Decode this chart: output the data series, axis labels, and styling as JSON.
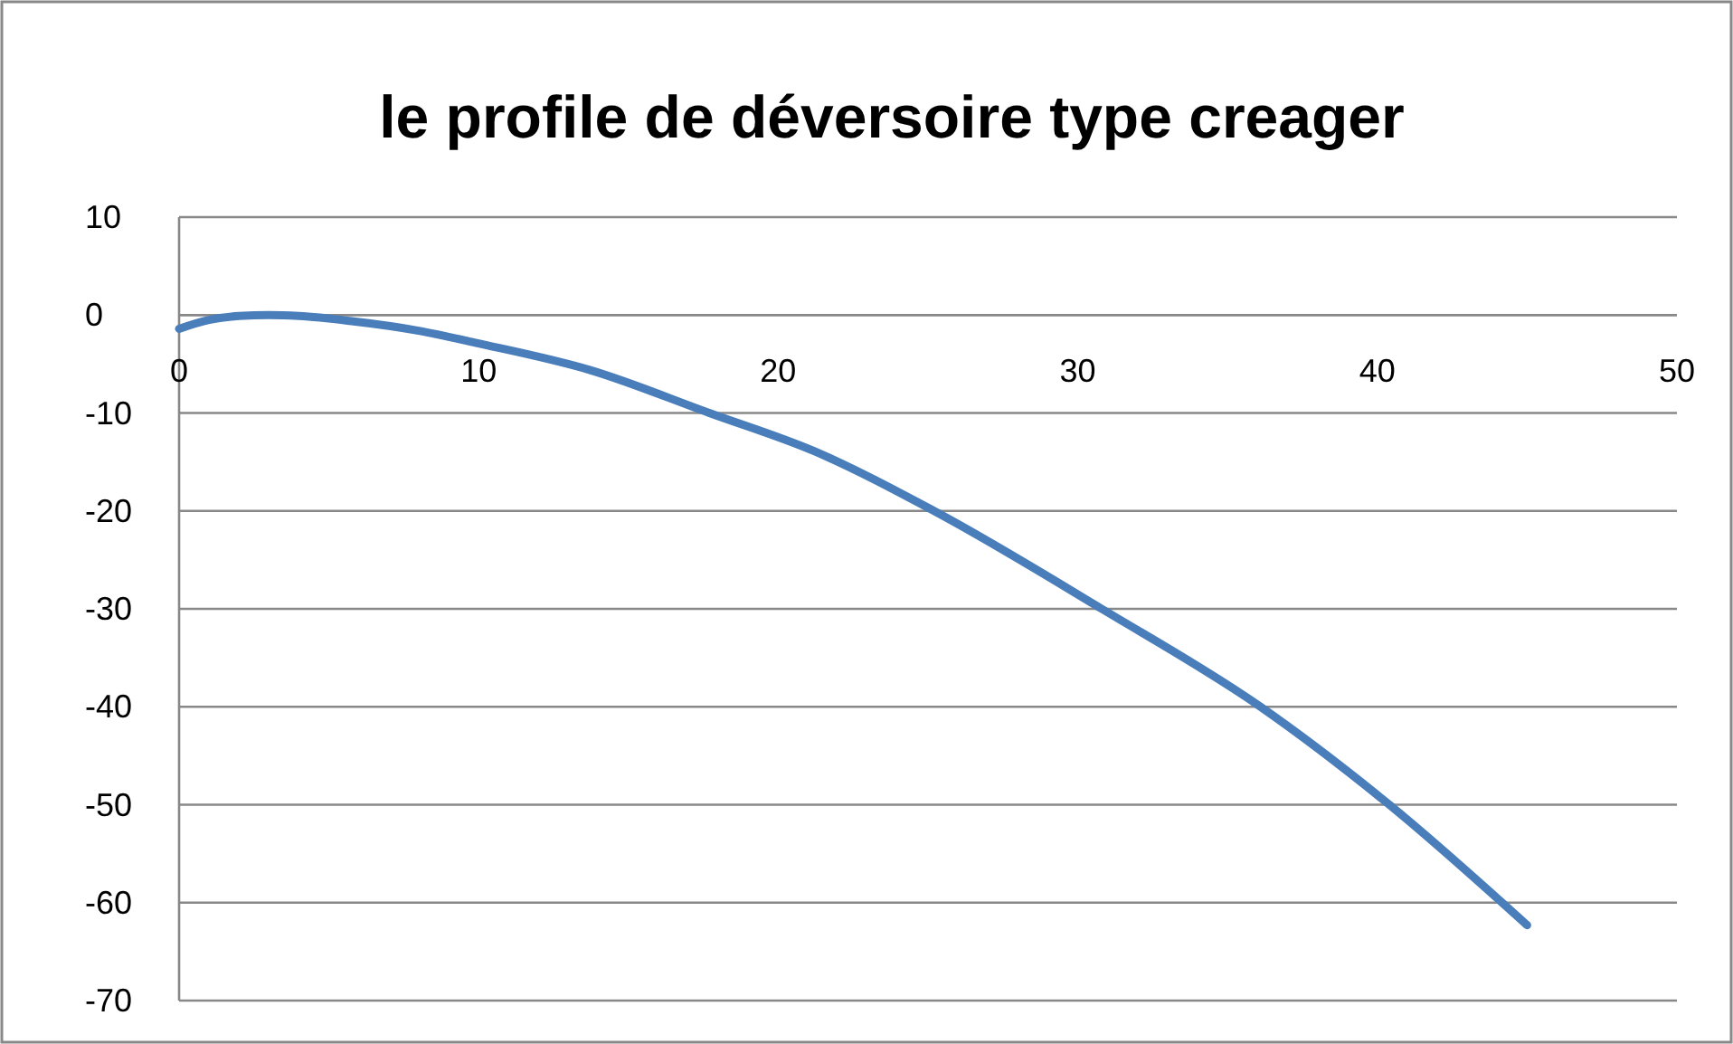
{
  "chart_data": {
    "type": "line",
    "title": "le profile de déversoire type creager",
    "series": [
      {
        "color": "#4a7ebb",
        "x": [
          0,
          1,
          2,
          3,
          4,
          5.7,
          8,
          10,
          13.7,
          17.7,
          21.2,
          25.2,
          30.8,
          36.1,
          40.4,
          45
        ],
        "values": [
          -1.4,
          -0.5,
          -0.1,
          0,
          -0.1,
          -0.6,
          -1.6,
          -2.9,
          -5.6,
          -10,
          -13.9,
          -20,
          -30,
          -40,
          -50,
          -62.3
        ]
      }
    ],
    "xlim": [
      0,
      50
    ],
    "xticks": [
      0,
      10,
      20,
      30,
      40,
      50
    ],
    "ylim": [
      -70,
      10
    ],
    "yticks": [
      -70,
      -60,
      -50,
      -40,
      -30,
      -20,
      -10,
      0,
      10
    ],
    "grid": "y",
    "marker": "none",
    "line_style": "solid"
  }
}
